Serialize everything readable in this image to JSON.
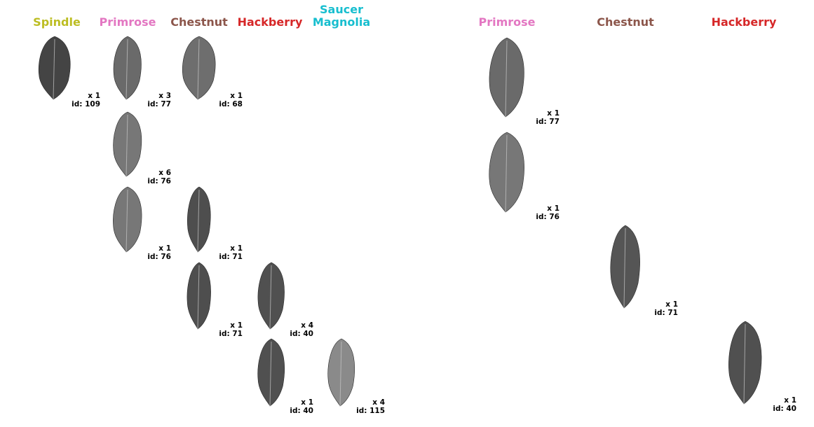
{
  "left_panel": {
    "columns": [
      {
        "name": "Spindle",
        "color": "#bcbd22"
      },
      {
        "name": "Primrose",
        "color": "#e377c2"
      },
      {
        "name": "Chestnut",
        "color": "#8c564b"
      },
      {
        "name": "Hackberry",
        "color": "#d62728"
      },
      {
        "name": "Saucer\nMagnolia",
        "color": "#17becf"
      }
    ],
    "leaves": [
      {
        "col": 0,
        "row": 0,
        "count": "x 1",
        "id": "id: 109",
        "shade": "#444444",
        "shape": "spindle"
      },
      {
        "col": 1,
        "row": 0,
        "count": "x 3",
        "id": "id: 77",
        "shade": "#6a6a6a",
        "shape": "primrose"
      },
      {
        "col": 2,
        "row": 0,
        "count": "x 1",
        "id": "id: 68",
        "shade": "#6e6e6e",
        "shape": "chestnut-wide"
      },
      {
        "col": 1,
        "row": 1,
        "count": "x 6",
        "id": "id: 76",
        "shade": "#777777",
        "shape": "primrose"
      },
      {
        "col": 1,
        "row": 2,
        "count": "x 1",
        "id": "id: 76",
        "shade": "#777777",
        "shape": "primrose"
      },
      {
        "col": 2,
        "row": 2,
        "count": "x 1",
        "id": "id: 71",
        "shade": "#4e4e4e",
        "shape": "narrow"
      },
      {
        "col": 2,
        "row": 3,
        "count": "x 1",
        "id": "id: 71",
        "shade": "#4e4e4e",
        "shape": "narrow"
      },
      {
        "col": 3,
        "row": 3,
        "count": "x 4",
        "id": "id: 40",
        "shade": "#505050",
        "shape": "serrate"
      },
      {
        "col": 3,
        "row": 4,
        "count": "x 1",
        "id": "id: 40",
        "shade": "#505050",
        "shape": "serrate"
      },
      {
        "col": 4,
        "row": 4,
        "count": "x 4",
        "id": "id: 115",
        "shade": "#8a8a8a",
        "shape": "magnolia"
      }
    ]
  },
  "right_panel": {
    "columns": [
      {
        "name": "Primrose",
        "color": "#e377c2"
      },
      {
        "name": "Chestnut",
        "color": "#8c564b"
      },
      {
        "name": "Hackberry",
        "color": "#d62728"
      }
    ],
    "leaves": [
      {
        "col": 0,
        "row": 0,
        "count": "x 1",
        "id": "id: 77",
        "shade": "#6a6a6a",
        "shape": "primrose"
      },
      {
        "col": 0,
        "row": 1,
        "count": "x 1",
        "id": "id: 76",
        "shade": "#777777",
        "shape": "primrose"
      },
      {
        "col": 1,
        "row": 2,
        "count": "x 1",
        "id": "id: 71",
        "shade": "#555555",
        "shape": "narrow"
      },
      {
        "col": 2,
        "row": 3,
        "count": "x 1",
        "id": "id: 40",
        "shade": "#505050",
        "shape": "serrate"
      }
    ]
  }
}
